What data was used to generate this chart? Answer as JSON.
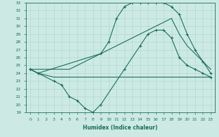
{
  "xlabel": "Humidex (Indice chaleur)",
  "ylabel": "",
  "bg_color": "#cceae3",
  "grid_color": "#b0d8cf",
  "line_color": "#1a6b5a",
  "xlim": [
    -0.5,
    23.5
  ],
  "ylim": [
    19,
    33
  ],
  "xticks": [
    0,
    1,
    2,
    3,
    4,
    5,
    6,
    7,
    8,
    9,
    10,
    11,
    12,
    13,
    14,
    15,
    16,
    17,
    18,
    19,
    20,
    21,
    22,
    23
  ],
  "yticks": [
    19,
    20,
    21,
    22,
    23,
    24,
    25,
    26,
    27,
    28,
    29,
    30,
    31,
    32,
    33
  ],
  "line1_jagged": {
    "x": [
      0,
      1,
      3,
      4,
      5,
      6,
      7,
      8,
      9,
      12,
      14,
      15,
      16,
      17,
      18,
      19,
      20,
      21,
      22,
      23
    ],
    "y": [
      24.5,
      24.0,
      23.0,
      22.5,
      21.0,
      20.5,
      19.5,
      19.0,
      20.0,
      24.5,
      27.5,
      29.0,
      29.5,
      29.5,
      28.5,
      26.0,
      25.0,
      24.5,
      24.0,
      23.5
    ]
  },
  "line2_rising": {
    "x": [
      0,
      1,
      2,
      3,
      4,
      5,
      6,
      7,
      8,
      9,
      10,
      11,
      12,
      13,
      14,
      15,
      16,
      17,
      18,
      19,
      20,
      21,
      22,
      23
    ],
    "y": [
      24.5,
      24.5,
      24.5,
      24.5,
      24.5,
      24.5,
      25.0,
      25.5,
      26.0,
      26.5,
      27.0,
      27.5,
      28.0,
      28.5,
      29.0,
      29.5,
      30.0,
      30.5,
      31.0,
      29.0,
      27.5,
      26.5,
      25.5,
      24.5
    ]
  },
  "line3_top": {
    "x": [
      0,
      1,
      9,
      10,
      11,
      12,
      13,
      14,
      15,
      16,
      17,
      18,
      19,
      20,
      21,
      22,
      23
    ],
    "y": [
      24.5,
      24.0,
      26.5,
      28.0,
      31.0,
      32.5,
      33.0,
      33.0,
      33.0,
      33.0,
      33.0,
      32.5,
      31.5,
      29.0,
      27.0,
      25.5,
      24.0
    ]
  },
  "line4_flat": {
    "x": [
      0,
      1,
      3,
      9,
      10,
      11,
      12,
      13,
      14,
      15,
      16,
      17,
      18,
      19,
      20,
      21,
      22,
      23
    ],
    "y": [
      24.5,
      24.0,
      23.5,
      23.5,
      23.5,
      23.5,
      23.5,
      23.5,
      23.5,
      23.5,
      23.5,
      23.5,
      23.5,
      23.5,
      23.5,
      23.5,
      23.5,
      23.5
    ]
  }
}
